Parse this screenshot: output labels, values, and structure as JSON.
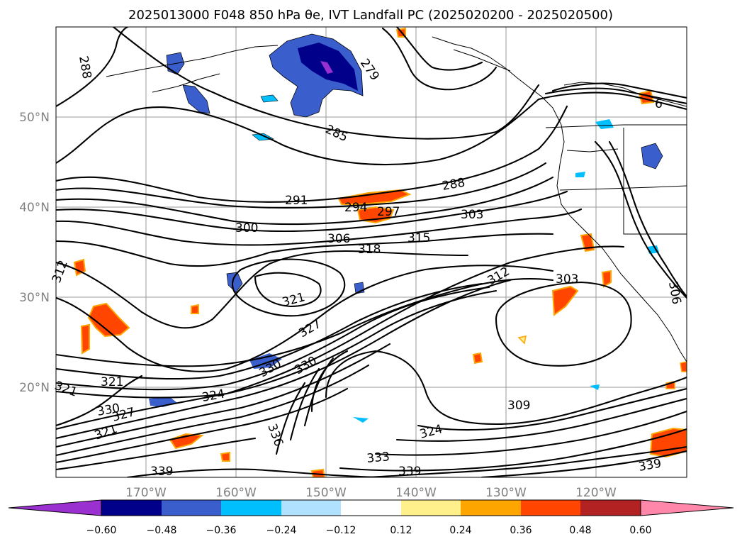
{
  "title": "2025013000 F048 850 hPa θe, IVT Landfall PC (2025020200 - 2025020500)",
  "map": {
    "lon_ticks": [
      "170°W",
      "160°W",
      "150°W",
      "140°W",
      "130°W",
      "120°W"
    ],
    "lat_ticks": [
      "50°N",
      "40°N",
      "30°N",
      "20°N"
    ],
    "gridlines": true
  },
  "contour_labels": [
    "288",
    "279",
    "285",
    "288",
    "291",
    "294",
    "297",
    "303",
    "300",
    "306",
    "318",
    "315",
    "312",
    "303",
    "312",
    "321",
    "327",
    "330",
    "330",
    "321",
    "321",
    "324",
    "330",
    "327",
    "321",
    "336",
    "309",
    "324",
    "333",
    "339",
    "339",
    "339",
    "306",
    "6"
  ],
  "colorbar": {
    "ticks": [
      "−0.60",
      "−0.48",
      "−0.36",
      "−0.24",
      "−0.12",
      "0.12",
      "0.24",
      "0.36",
      "0.48",
      "0.60"
    ],
    "colors": [
      "#9b30d0",
      "#00008b",
      "#3a5fcd",
      "#00bfff",
      "#b0e2ff",
      "#ffffff",
      "#fff08c",
      "#ffa500",
      "#ff4500",
      "#b22222",
      "#ff88aa"
    ],
    "extend": "both"
  }
}
